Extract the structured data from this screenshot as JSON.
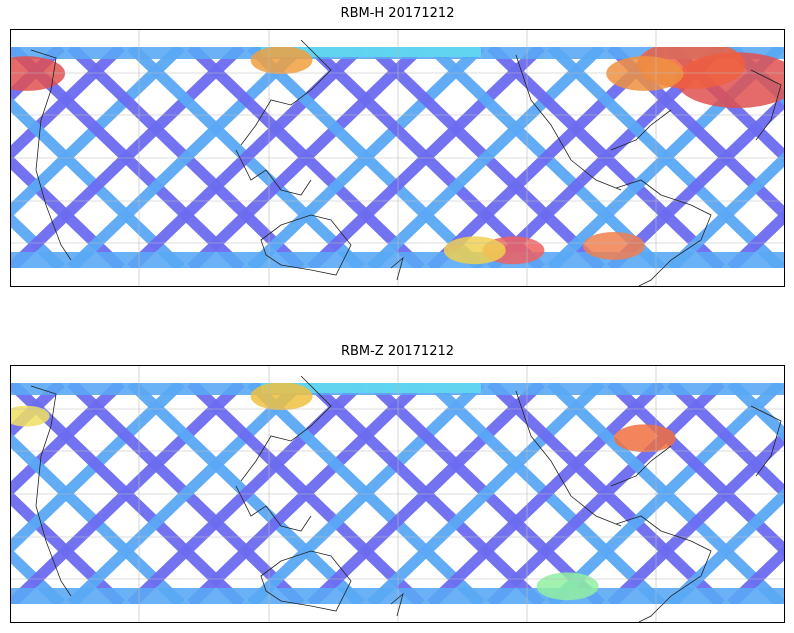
{
  "panels": [
    {
      "title": "RBM-H 20171212",
      "hotspots": [
        {
          "lon": 0.94,
          "lat": 0.15,
          "color": "#e05050",
          "r": 0.08
        },
        {
          "lon": 0.88,
          "lat": 0.08,
          "color": "#f06040",
          "r": 0.07
        },
        {
          "lon": 0.82,
          "lat": 0.12,
          "color": "#f09040",
          "r": 0.05
        },
        {
          "lon": 0.02,
          "lat": 0.12,
          "color": "#e05050",
          "r": 0.05
        },
        {
          "lon": 0.65,
          "lat": 0.92,
          "color": "#f06060",
          "r": 0.04
        },
        {
          "lon": 0.78,
          "lat": 0.9,
          "color": "#f08050",
          "r": 0.04
        },
        {
          "lon": 0.35,
          "lat": 0.06,
          "color": "#f0a040",
          "r": 0.04
        },
        {
          "lon": 0.6,
          "lat": 0.92,
          "color": "#f0d050",
          "r": 0.04
        }
      ]
    },
    {
      "title": "RBM-Z 20171212",
      "hotspots": [
        {
          "lon": 0.35,
          "lat": 0.06,
          "color": "#f0c040",
          "r": 0.04
        },
        {
          "lon": 0.82,
          "lat": 0.25,
          "color": "#f07040",
          "r": 0.04
        },
        {
          "lon": 0.02,
          "lat": 0.15,
          "color": "#f0e060",
          "r": 0.03
        },
        {
          "lon": 0.72,
          "lat": 0.92,
          "color": "#90f0a0",
          "r": 0.04
        }
      ]
    }
  ],
  "colors": {
    "swath_dark": "#6b6bf0",
    "swath_mid": "#5aa8f5",
    "swath_light": "#60d8f0",
    "coast": "#222222",
    "grid": "#bbbbbb"
  }
}
